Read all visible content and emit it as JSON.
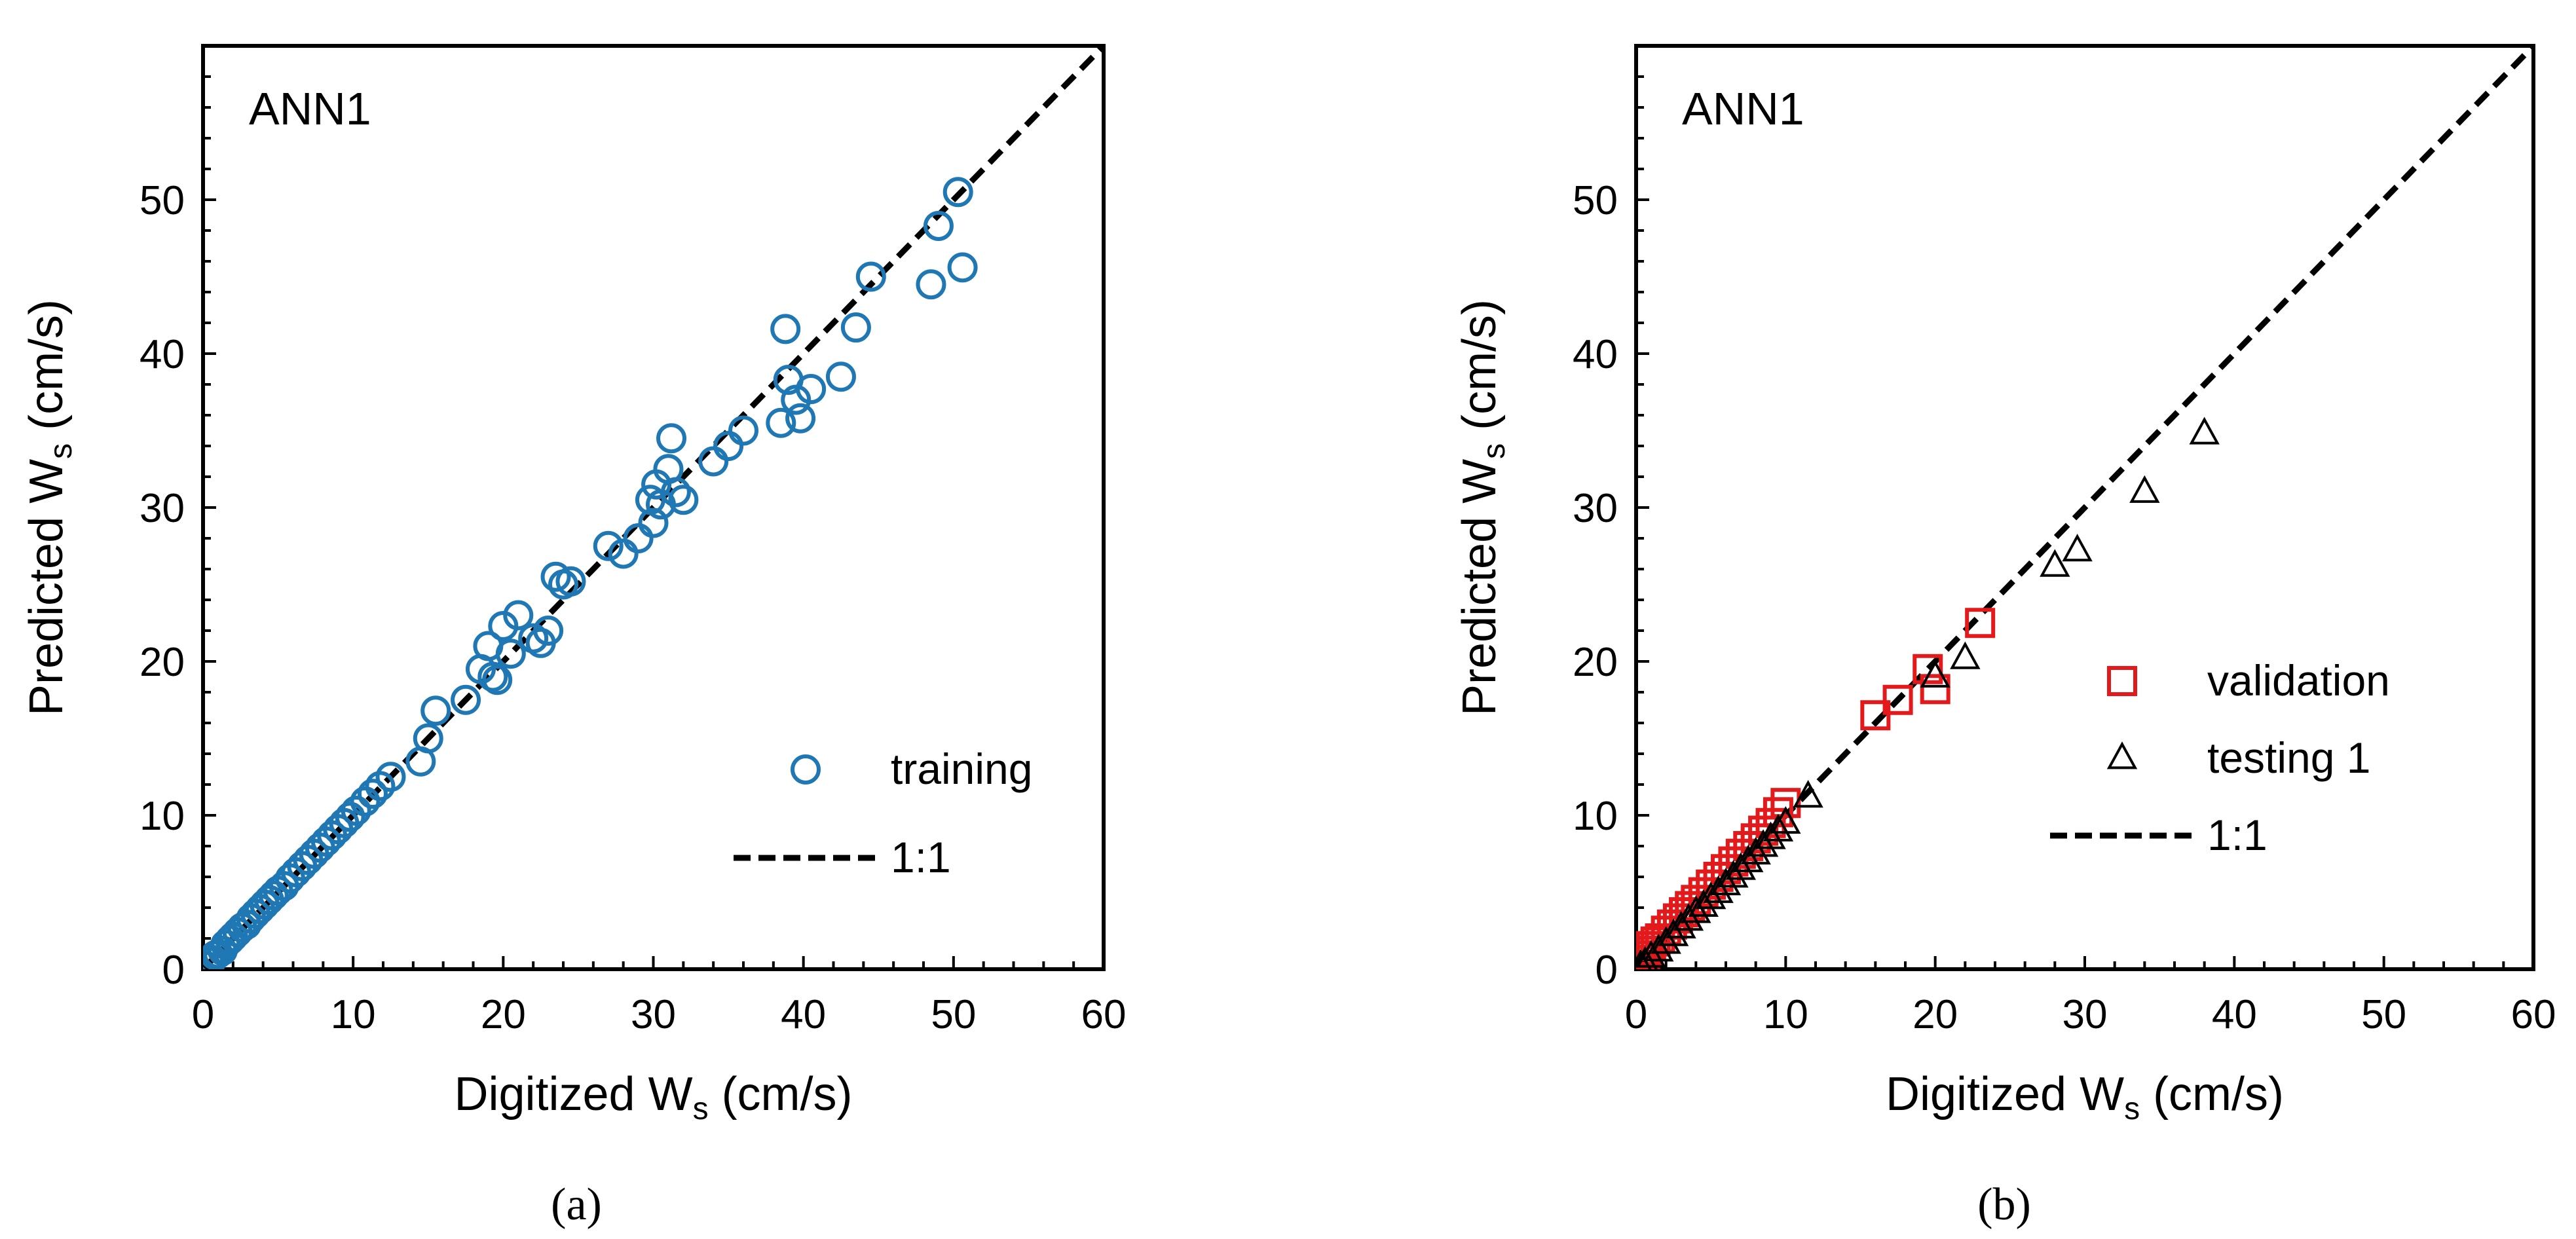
{
  "chart_data": [
    {
      "type": "scatter",
      "panel_label": "(a)",
      "annotation": "ANN1",
      "xlabel": "Digitized W",
      "xlabel_sub": "s",
      "xlabel_unit": " (cm/s)",
      "ylabel": "Predicted W",
      "ylabel_sub": "s",
      "ylabel_unit": " (cm/s)",
      "xlim": [
        0,
        60
      ],
      "ylim": [
        0,
        60
      ],
      "xticks": [
        "0",
        "10",
        "20",
        "30",
        "40",
        "50",
        "60"
      ],
      "yticks": [
        "0",
        "10",
        "20",
        "30",
        "40",
        "50"
      ],
      "legend_position": "bottom-right",
      "series": [
        {
          "name": "training",
          "marker": "circle",
          "color": "#1f77b4",
          "points": [
            [
              0.2,
              0.2
            ],
            [
              0.4,
              0.5
            ],
            [
              0.6,
              0.6
            ],
            [
              0.8,
              0.9
            ],
            [
              1.0,
              1.0
            ],
            [
              1.3,
              1.2
            ],
            [
              1.5,
              1.6
            ],
            [
              1.8,
              1.9
            ],
            [
              2.0,
              2.1
            ],
            [
              2.3,
              2.4
            ],
            [
              2.6,
              2.7
            ],
            [
              2.9,
              2.9
            ],
            [
              3.2,
              3.3
            ],
            [
              3.5,
              3.6
            ],
            [
              3.8,
              3.9
            ],
            [
              4.1,
              4.2
            ],
            [
              4.4,
              4.5
            ],
            [
              4.7,
              4.8
            ],
            [
              5.0,
              5.1
            ],
            [
              5.4,
              5.4
            ],
            [
              5.8,
              5.9
            ],
            [
              6.2,
              6.3
            ],
            [
              6.6,
              6.7
            ],
            [
              7.0,
              7.1
            ],
            [
              7.4,
              7.5
            ],
            [
              7.8,
              7.9
            ],
            [
              8.2,
              8.3
            ],
            [
              8.6,
              8.7
            ],
            [
              9.0,
              9.1
            ],
            [
              9.4,
              9.5
            ],
            [
              9.8,
              9.9
            ],
            [
              10.2,
              10.3
            ],
            [
              10.8,
              10.9
            ],
            [
              11.3,
              11.4
            ],
            [
              11.8,
              11.9
            ],
            [
              12.5,
              12.5
            ],
            [
              14.5,
              13.5
            ],
            [
              15.0,
              15.0
            ],
            [
              15.5,
              16.8
            ],
            [
              17.5,
              17.5
            ],
            [
              18.5,
              19.5
            ],
            [
              19.0,
              21.0
            ],
            [
              19.3,
              19.0
            ],
            [
              19.6,
              18.8
            ],
            [
              20.0,
              22.3
            ],
            [
              20.5,
              20.5
            ],
            [
              21.0,
              23.0
            ],
            [
              22.0,
              21.5
            ],
            [
              22.5,
              21.2
            ],
            [
              23.0,
              22.0
            ],
            [
              23.5,
              25.5
            ],
            [
              24.0,
              25.0
            ],
            [
              24.5,
              25.2
            ],
            [
              27.0,
              27.5
            ],
            [
              28.0,
              27.0
            ],
            [
              29.0,
              28.0
            ],
            [
              29.8,
              30.5
            ],
            [
              30.0,
              29.0
            ],
            [
              30.2,
              31.5
            ],
            [
              30.5,
              30.2
            ],
            [
              31.0,
              32.5
            ],
            [
              31.2,
              34.5
            ],
            [
              31.5,
              31.0
            ],
            [
              32.0,
              30.5
            ],
            [
              34.0,
              33.0
            ],
            [
              35.0,
              34.0
            ],
            [
              36.0,
              35.0
            ],
            [
              38.5,
              35.5
            ],
            [
              38.8,
              41.6
            ],
            [
              39.0,
              38.3
            ],
            [
              39.5,
              37.0
            ],
            [
              39.8,
              35.8
            ],
            [
              40.5,
              37.7
            ],
            [
              42.5,
              38.5
            ],
            [
              43.5,
              41.7
            ],
            [
              44.5,
              45.0
            ],
            [
              48.5,
              44.5
            ],
            [
              49.0,
              48.3
            ],
            [
              50.3,
              50.5
            ],
            [
              50.6,
              45.6
            ]
          ]
        },
        {
          "name": "1:1",
          "marker": "dashed-line",
          "color": "#000000",
          "points": [
            [
              0,
              0
            ],
            [
              60,
              60
            ]
          ]
        }
      ]
    },
    {
      "type": "scatter",
      "panel_label": "(b)",
      "annotation": "ANN1",
      "xlabel": "Digitized W",
      "xlabel_sub": "s",
      "xlabel_unit": " (cm/s)",
      "ylabel": "Predicted W",
      "ylabel_sub": "s",
      "ylabel_unit": " (cm/s)",
      "xlim": [
        0,
        60
      ],
      "ylim": [
        0,
        60
      ],
      "xticks": [
        "0",
        "10",
        "20",
        "30",
        "40",
        "50",
        "60"
      ],
      "yticks": [
        "0",
        "10",
        "20",
        "30",
        "40",
        "50"
      ],
      "legend_position": "right",
      "series": [
        {
          "name": "validation",
          "marker": "square",
          "color": "#e31a1c",
          "points": [
            [
              0.2,
              0.3
            ],
            [
              0.4,
              0.6
            ],
            [
              0.6,
              0.9
            ],
            [
              0.8,
              1.2
            ],
            [
              1.0,
              1.5
            ],
            [
              1.3,
              1.8
            ],
            [
              1.6,
              2.0
            ],
            [
              2.0,
              2.5
            ],
            [
              2.4,
              2.9
            ],
            [
              2.8,
              3.3
            ],
            [
              3.2,
              3.7
            ],
            [
              3.6,
              4.1
            ],
            [
              4.0,
              4.5
            ],
            [
              4.5,
              5.0
            ],
            [
              5.0,
              5.5
            ],
            [
              5.5,
              6.0
            ],
            [
              6.0,
              6.5
            ],
            [
              6.5,
              7.0
            ],
            [
              7.0,
              7.5
            ],
            [
              7.5,
              8.0
            ],
            [
              8.0,
              8.5
            ],
            [
              8.5,
              9.0
            ],
            [
              9.0,
              9.5
            ],
            [
              9.5,
              10.2
            ],
            [
              10.0,
              10.8
            ],
            [
              16.0,
              16.5
            ],
            [
              17.5,
              17.5
            ],
            [
              19.5,
              19.5
            ],
            [
              20.0,
              18.2
            ],
            [
              23.0,
              22.5
            ]
          ]
        },
        {
          "name": "testing 1",
          "marker": "triangle",
          "color": "#000000",
          "points": [
            [
              0.3,
              0.2
            ],
            [
              0.6,
              0.4
            ],
            [
              1.0,
              0.8
            ],
            [
              1.5,
              1.2
            ],
            [
              2.0,
              1.7
            ],
            [
              2.5,
              2.2
            ],
            [
              3.0,
              2.7
            ],
            [
              3.5,
              3.2
            ],
            [
              4.0,
              3.7
            ],
            [
              4.5,
              4.1
            ],
            [
              5.0,
              4.6
            ],
            [
              5.5,
              5.0
            ],
            [
              6.0,
              5.5
            ],
            [
              6.5,
              6.0
            ],
            [
              7.0,
              6.5
            ],
            [
              7.5,
              7.0
            ],
            [
              8.0,
              7.5
            ],
            [
              8.5,
              8.0
            ],
            [
              9.0,
              8.5
            ],
            [
              9.5,
              9.0
            ],
            [
              10.0,
              9.5
            ],
            [
              11.5,
              11.2
            ],
            [
              20.0,
              19.0
            ],
            [
              22.0,
              20.2
            ],
            [
              28.0,
              26.2
            ],
            [
              29.5,
              27.2
            ],
            [
              34.0,
              31.0
            ],
            [
              38.0,
              34.8
            ]
          ]
        },
        {
          "name": "1:1",
          "marker": "dashed-line",
          "color": "#000000",
          "points": [
            [
              0,
              0
            ],
            [
              60,
              60
            ]
          ]
        }
      ]
    }
  ]
}
